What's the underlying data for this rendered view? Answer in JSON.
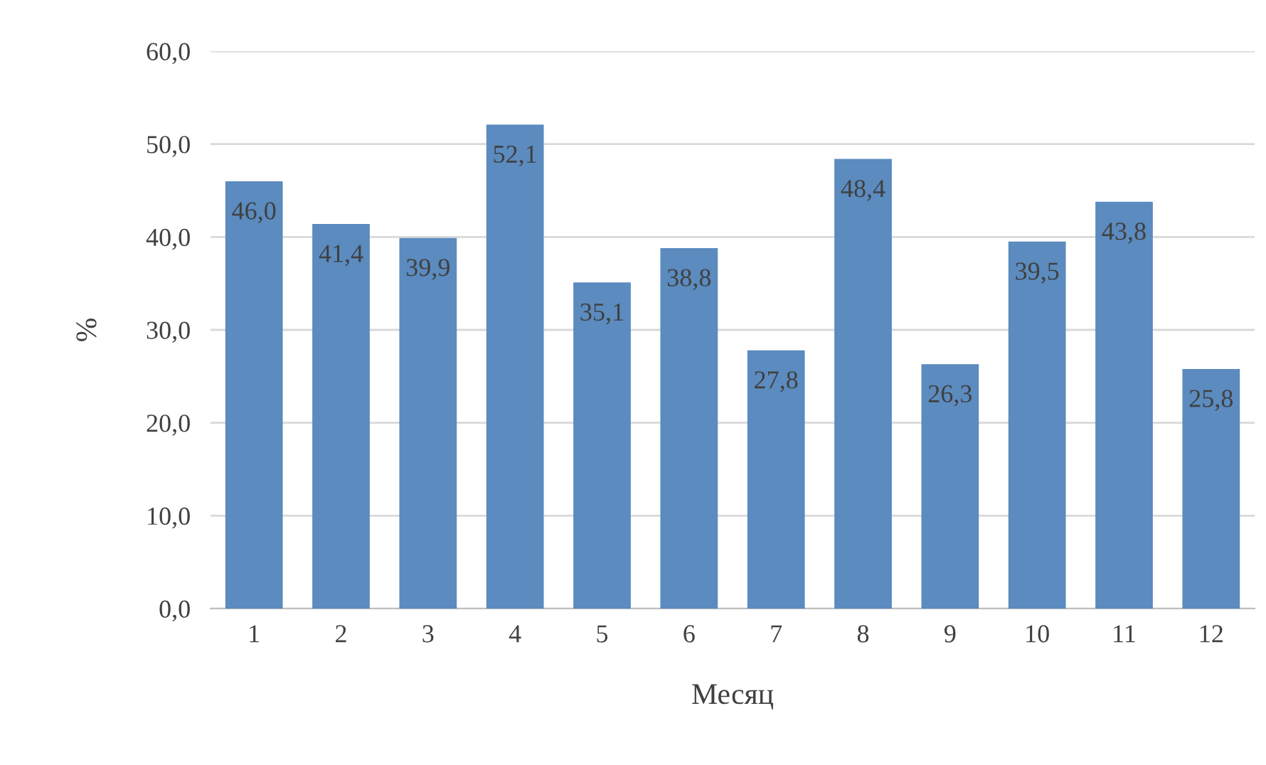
{
  "chart_data": {
    "type": "bar",
    "xlabel": "Месяц",
    "ylabel": "%",
    "categories": [
      "1",
      "2",
      "3",
      "4",
      "5",
      "6",
      "7",
      "8",
      "9",
      "10",
      "11",
      "12"
    ],
    "values": [
      46.0,
      41.4,
      39.9,
      52.1,
      35.1,
      38.8,
      27.8,
      48.4,
      26.3,
      39.5,
      43.8,
      25.8
    ],
    "value_labels": [
      "46,0",
      "41,4",
      "39,9",
      "52,1",
      "35,1",
      "38,8",
      "27,8",
      "48,4",
      "26,3",
      "39,5",
      "43,8",
      "25,8"
    ],
    "color": "#5b8bbf",
    "ylim": [
      0,
      60
    ],
    "yticks": [
      {
        "value": 0,
        "label": "0,0"
      },
      {
        "value": 10,
        "label": "10,0"
      },
      {
        "value": 20,
        "label": "20,0"
      },
      {
        "value": 30,
        "label": "30,0"
      },
      {
        "value": 40,
        "label": "40,0"
      },
      {
        "value": 50,
        "label": "50,0"
      },
      {
        "value": 60,
        "label": "60,0"
      }
    ],
    "grid": "y"
  }
}
